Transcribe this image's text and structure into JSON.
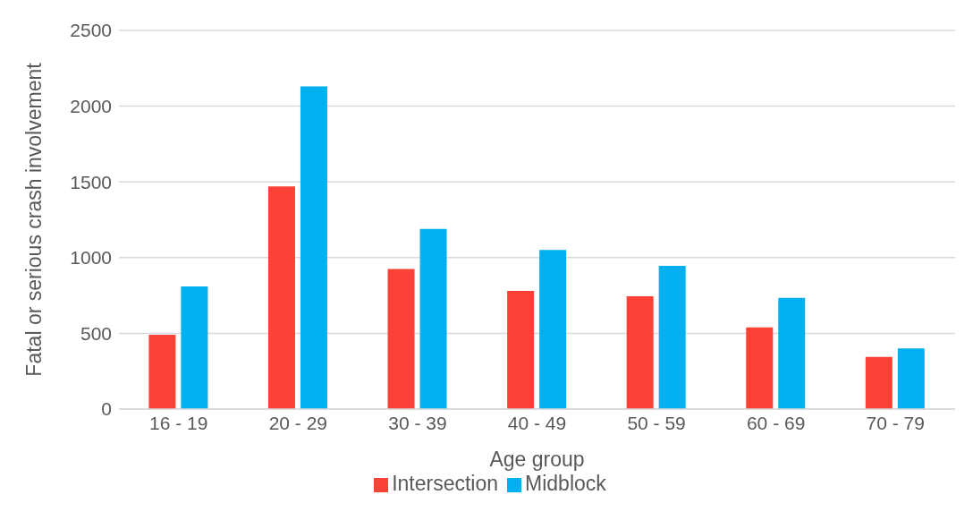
{
  "chart_data": {
    "type": "bar",
    "xlabel": "Age group",
    "ylabel": "Fatal or serious crash involvement",
    "categories": [
      "16 - 19",
      "20 - 29",
      "30 - 39",
      "40 - 49",
      "50 - 59",
      "60 - 69",
      "70 - 79"
    ],
    "series": [
      {
        "name": "Intersection",
        "color": "#fc4236",
        "values": [
          490,
          1470,
          925,
          780,
          745,
          540,
          345
        ]
      },
      {
        "name": "Midblock",
        "color": "#00b0f0",
        "values": [
          810,
          2130,
          1190,
          1050,
          945,
          735,
          400
        ]
      }
    ],
    "ylim": [
      0,
      2500
    ],
    "yticks": [
      0,
      500,
      1000,
      1500,
      2000,
      2500
    ],
    "grid": "y",
    "legend": "bottom"
  }
}
